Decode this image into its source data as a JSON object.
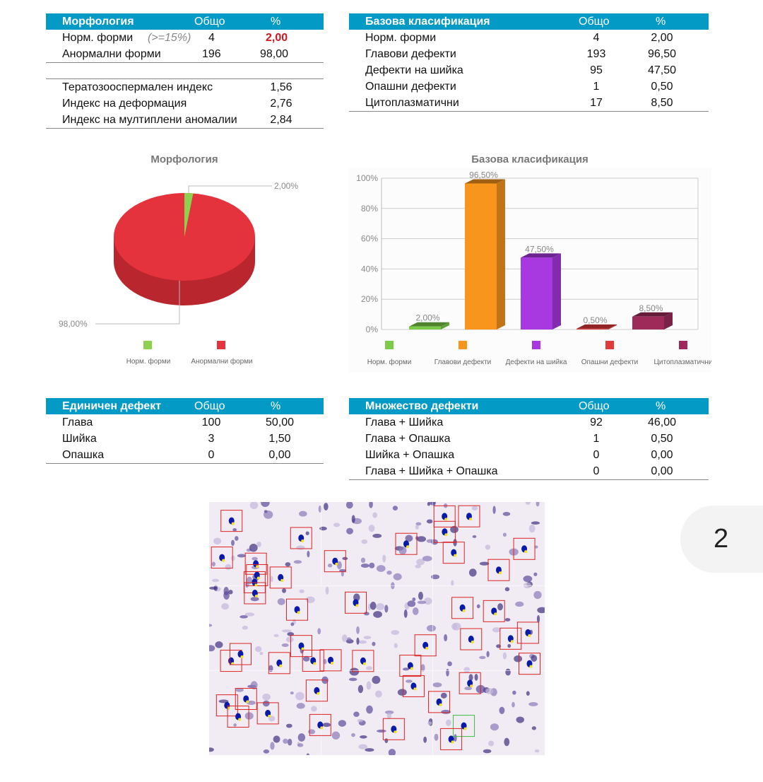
{
  "morph": {
    "h": [
      "Морфология",
      "Общо",
      "%"
    ],
    "norm": {
      "label": "Норм. форми",
      "note": "(>=15%)",
      "total": "4",
      "pct": "2,00"
    },
    "abn": {
      "label": "Анормални форми",
      "total": "196",
      "pct": "98,00"
    },
    "idx": [
      {
        "label": "Тератозооспермален индекс",
        "v": "1,56"
      },
      {
        "label": "Индекс на деформация",
        "v": "2,76"
      },
      {
        "label": "Индекс на мултиплени аномалии",
        "v": "2,84"
      }
    ]
  },
  "base": {
    "h": [
      "Базова класификация",
      "Общо",
      "%"
    ],
    "rows": [
      [
        "Норм. форми",
        "4",
        "2,00"
      ],
      [
        "Главови дефекти",
        "193",
        "96,50"
      ],
      [
        "Дефекти на шийка",
        "95",
        "47,50"
      ],
      [
        "Опашни дефекти",
        "1",
        "0,50"
      ],
      [
        "Цитоплазматични",
        "17",
        "8,50"
      ]
    ]
  },
  "single": {
    "h": [
      "Единичен дефект",
      "Общо",
      "%"
    ],
    "rows": [
      [
        "Глава",
        "100",
        "50,00"
      ],
      [
        "Шийка",
        "3",
        "1,50"
      ],
      [
        "Опашка",
        "0",
        "0,00"
      ]
    ]
  },
  "multi": {
    "h": [
      "Множество дефекти",
      "Общо",
      "%"
    ],
    "rows": [
      [
        "Глава + Шийка",
        "92",
        "46,00"
      ],
      [
        "Глава + Опашка",
        "1",
        "0,50"
      ],
      [
        "Шийка + Опашка",
        "0",
        "0,00"
      ],
      [
        "Глава + Шийка + Опашка",
        "0",
        "0,00"
      ]
    ]
  },
  "page_number": "2",
  "chart_data": [
    {
      "type": "pie",
      "title": "Морфология",
      "categories": [
        "Норм. форми",
        "Анормални форми"
      ],
      "values": [
        2.0,
        98.0
      ],
      "labels": [
        "2,00%",
        "98,00%"
      ],
      "colors": [
        "#8dd14f",
        "#e5333d"
      ],
      "legend": "bottom"
    },
    {
      "type": "bar",
      "title": "Базова класификация",
      "categories": [
        "Норм. форми",
        "Главови дефекти",
        "Дефекти на шийка",
        "Опашни дефекти",
        "Цитоплазматични"
      ],
      "values": [
        2.0,
        96.5,
        47.5,
        0.5,
        8.5
      ],
      "labels": [
        "2,00%",
        "96,50%",
        "47,50%",
        "0,50%",
        "8,50%"
      ],
      "colors": [
        "#7ccb48",
        "#f7951c",
        "#a838e0",
        "#e03a3a",
        "#9e2a5a"
      ],
      "ylim": [
        0,
        100
      ],
      "yticks": [
        "0%",
        "20%",
        "40%",
        "60%",
        "80%",
        "100%"
      ],
      "grid": true,
      "legend": "bottom"
    }
  ]
}
